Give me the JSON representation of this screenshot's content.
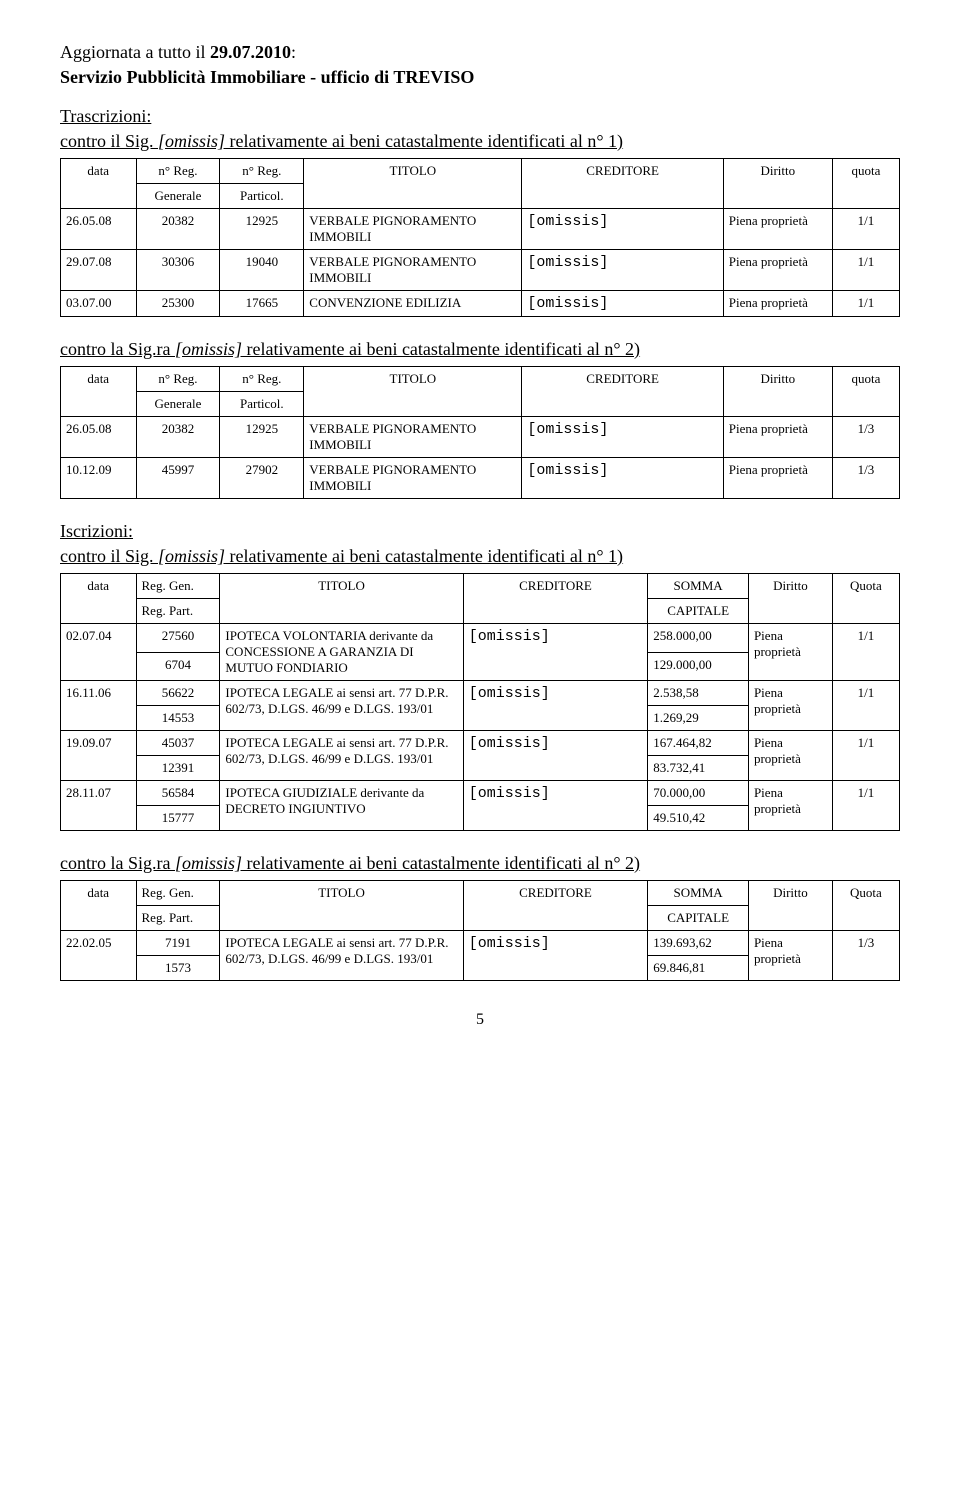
{
  "header": {
    "updated_prefix": "Aggiornata a tutto il ",
    "updated_date": "29.07.2010",
    "updated_suffix": ":",
    "service": "Servizio Pubblicità Immobiliare - ufficio di TREVISO"
  },
  "trascrizioni": {
    "title": "Trascrizioni:",
    "group1": {
      "subtitle_pre": "contro il Sig. ",
      "subtitle_om": "[omissis]",
      "subtitle_post": " relativamente ai beni catastalmente identificati al n° 1)",
      "headers": {
        "data": "data",
        "nreg": "n° Reg.",
        "generale": "Generale",
        "particol": "Particol.",
        "titolo": "TITOLO",
        "creditore": "CREDITORE",
        "diritto": "Diritto",
        "quota": "quota"
      },
      "rows": [
        {
          "data": "26.05.08",
          "gen": "20382",
          "part": "12925",
          "titolo": "VERBALE PIGNORAMENTO IMMOBILI",
          "cred": "[omissis]",
          "dir": "Piena proprietà",
          "quota": "1/1"
        },
        {
          "data": "29.07.08",
          "gen": "30306",
          "part": "19040",
          "titolo": "VERBALE PIGNORAMENTO IMMOBILI",
          "cred": "[omissis]",
          "dir": "Piena proprietà",
          "quota": "1/1"
        },
        {
          "data": "03.07.00",
          "gen": "25300",
          "part": "17665",
          "titolo": "CONVENZIONE EDILIZIA",
          "cred": "[omissis]",
          "dir": "Piena proprietà",
          "quota": "1/1"
        }
      ]
    },
    "group2": {
      "subtitle_pre": "contro la Sig.ra ",
      "subtitle_om": "[omissis]",
      "subtitle_post": " relativamente ai beni catastalmente identificati al n° 2)",
      "headers": {
        "data": "data",
        "nreg": "n° Reg.",
        "generale": "Generale",
        "particol": "Particol.",
        "titolo": "TITOLO",
        "creditore": "CREDITORE",
        "diritto": "Diritto",
        "quota": "quota"
      },
      "rows": [
        {
          "data": "26.05.08",
          "gen": "20382",
          "part": "12925",
          "titolo": "VERBALE PIGNORAMENTO IMMOBILI",
          "cred": "[omissis]",
          "dir": "Piena proprietà",
          "quota": "1/3"
        },
        {
          "data": "10.12.09",
          "gen": "45997",
          "part": "27902",
          "titolo": "VERBALE PIGNORAMENTO IMMOBILI",
          "cred": "[omissis]",
          "dir": "Piena proprietà",
          "quota": "1/3"
        }
      ]
    }
  },
  "iscrizioni": {
    "title": "Iscrizioni:",
    "group1": {
      "subtitle_pre": "contro il Sig. ",
      "subtitle_om": "[omissis]",
      "subtitle_post": " relativamente ai beni catastalmente identificati al n° 1)",
      "headers": {
        "data": "data",
        "reggen": "Reg. Gen.",
        "regpart": "Reg. Part.",
        "titolo": "TITOLO",
        "creditore": "CREDITORE",
        "somma": "SOMMA",
        "capitale": "CAPITALE",
        "diritto": "Diritto",
        "quota": "Quota"
      },
      "rows": [
        {
          "data": "02.07.04",
          "gen": "27560",
          "part": "6704",
          "titolo": "IPOTECA VOLONTARIA derivante da CONCESSIONE A GARANZIA DI MUTUO FONDIARIO",
          "cred": "[omissis]",
          "somma": "258.000,00",
          "capitale": "129.000,00",
          "dir": "Piena proprietà",
          "quota": "1/1"
        },
        {
          "data": "16.11.06",
          "gen": "56622",
          "part": "14553",
          "titolo": "IPOTECA LEGALE ai sensi art. 77 D.P.R. 602/73, D.LGS. 46/99 e D.LGS. 193/01",
          "cred": "[omissis]",
          "somma": "2.538,58",
          "capitale": "1.269,29",
          "dir": "Piena proprietà",
          "quota": "1/1"
        },
        {
          "data": "19.09.07",
          "gen": "45037",
          "part": "12391",
          "titolo": "IPOTECA LEGALE ai sensi art. 77 D.P.R. 602/73, D.LGS. 46/99 e D.LGS. 193/01",
          "cred": "[omissis]",
          "somma": "167.464,82",
          "capitale": "83.732,41",
          "dir": "Piena proprietà",
          "quota": "1/1"
        },
        {
          "data": "28.11.07",
          "gen": "56584",
          "part": "15777",
          "titolo": "IPOTECA GIUDIZIALE derivante da DECRETO INGIUNTIVO",
          "cred": "[omissis]",
          "somma": "70.000,00",
          "capitale": "49.510,42",
          "dir": "Piena proprietà",
          "quota": "1/1"
        }
      ]
    },
    "group2": {
      "subtitle_pre": "contro la Sig.ra ",
      "subtitle_om": "[omissis]",
      "subtitle_post": " relativamente ai beni catastalmente identificati al n° 2)",
      "headers": {
        "data": "data",
        "reggen": "Reg. Gen.",
        "regpart": "Reg. Part.",
        "titolo": "TITOLO",
        "creditore": "CREDITORE",
        "somma": "SOMMA",
        "capitale": "CAPITALE",
        "diritto": "Diritto",
        "quota": "Quota"
      },
      "rows": [
        {
          "data": "22.02.05",
          "gen": "7191",
          "part": "1573",
          "titolo": "IPOTECA LEGALE ai sensi art. 77 D.P.R. 602/73, D.LGS. 46/99 e D.LGS. 193/01",
          "cred": "[omissis]",
          "somma": "139.693,62",
          "capitale": "69.846,81",
          "dir": "Piena proprietà",
          "quota": "1/3"
        }
      ]
    }
  },
  "page_number": "5"
}
